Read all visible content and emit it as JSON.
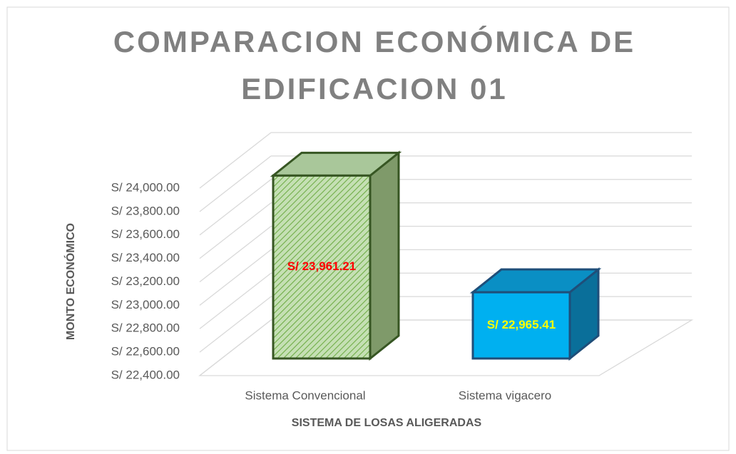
{
  "chart_data": {
    "type": "bar3d",
    "title": [
      "COMPARACION ECONÓMICA DE",
      "EDIFICACION 01"
    ],
    "x_label": "SISTEMA DE LOSAS ALIGERADAS",
    "y_label": "MONTO ECONÓMICO",
    "categories": [
      "Sistema Convencional",
      "Sistema vigacero"
    ],
    "values": [
      23961.21,
      22965.41
    ],
    "value_labels": [
      "S/ 23,961.21",
      "S/ 22,965.41"
    ],
    "colors": [
      "#c5e0b4",
      "#00b0f0"
    ],
    "edge_colors": [
      "#375623",
      "#1f4e79"
    ],
    "side_colors": [
      "#7f9a6a",
      "#0a6f9a"
    ],
    "hatch": [
      true,
      false
    ],
    "value_label_colors": [
      "#ff0000",
      "#ffff00"
    ],
    "ylim": [
      22400,
      24000
    ],
    "yticks": [
      {
        "value": 22400,
        "label": "S/ 22,400.00"
      },
      {
        "value": 22600,
        "label": "S/ 22,600.00"
      },
      {
        "value": 22800,
        "label": "S/ 22,800.00"
      },
      {
        "value": 23000,
        "label": "S/ 23,000.00"
      },
      {
        "value": 23200,
        "label": "S/ 23,200.00"
      },
      {
        "value": 23400,
        "label": "S/ 23,400.00"
      },
      {
        "value": 23600,
        "label": "S/ 23,600.00"
      },
      {
        "value": 23800,
        "label": "S/ 23,800.00"
      },
      {
        "value": 24000,
        "label": "S/ 24,000.00"
      }
    ],
    "grid": true
  }
}
